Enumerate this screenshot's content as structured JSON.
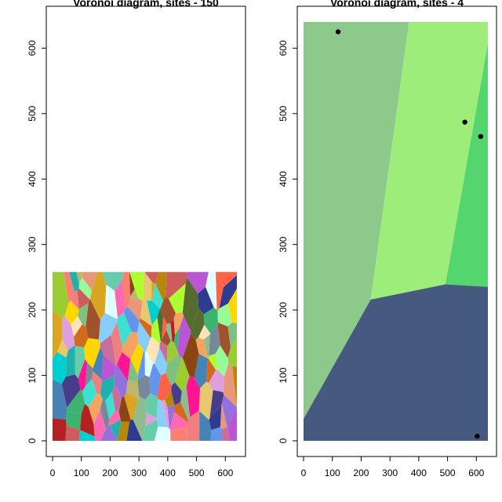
{
  "chart_data": [
    {
      "type": "voronoi",
      "title": "Voronoi diagram, sites - 150",
      "xlim": [
        0,
        640
      ],
      "ylim": [
        0,
        640
      ],
      "x_ticks": [
        0,
        100,
        200,
        300,
        400,
        500,
        600
      ],
      "y_ticks": [
        0,
        100,
        200,
        300,
        400,
        500,
        600
      ],
      "grid": false,
      "filled_extent": {
        "x": [
          0,
          640
        ],
        "y": [
          0,
          258
        ]
      },
      "sites_drawn": false,
      "cell_colors": [
        "#e8c86e",
        "#c96d9a",
        "#7fbf7f",
        "#f08080",
        "#9370db",
        "#66cdaa",
        "#e9967a",
        "#87cefa",
        "#daa520",
        "#ba55d3",
        "#20b2aa",
        "#ff6347",
        "#a0522d",
        "#40e0d0",
        "#b8860b",
        "#6495ed",
        "#ff69b4",
        "#3cb371",
        "#cd5c5c",
        "#9acd32",
        "#dda0dd",
        "#4682b4",
        "#f4a460",
        "#8fbc8f",
        "#d2691e",
        "#adff2f",
        "#778899",
        "#ffd700",
        "#2e3b8f",
        "#e0ffff",
        "#8b4513",
        "#ff1493",
        "#00ced1",
        "#bdb76b",
        "#fa8072",
        "#556b2f",
        "#ffe4b5",
        "#483d8b",
        "#98fb98",
        "#b22222"
      ]
    },
    {
      "type": "voronoi",
      "title": "Voronoi diagram, sites - 4",
      "xlim": [
        0,
        640
      ],
      "ylim": [
        0,
        640
      ],
      "x_ticks": [
        0,
        100,
        200,
        300,
        400,
        500,
        600
      ],
      "y_ticks": [
        0,
        100,
        200,
        300,
        400,
        500,
        600
      ],
      "grid": false,
      "filled_extent": {
        "x": [
          0,
          640
        ],
        "y": [
          0,
          640
        ]
      },
      "sites": [
        {
          "x": 120,
          "y": 625,
          "color": "#8cc98a"
        },
        {
          "x": 560,
          "y": 487,
          "color": "#9ded7b"
        },
        {
          "x": 615,
          "y": 465,
          "color": "#55d56e"
        },
        {
          "x": 603,
          "y": 7,
          "color": "#46597f"
        }
      ]
    }
  ]
}
